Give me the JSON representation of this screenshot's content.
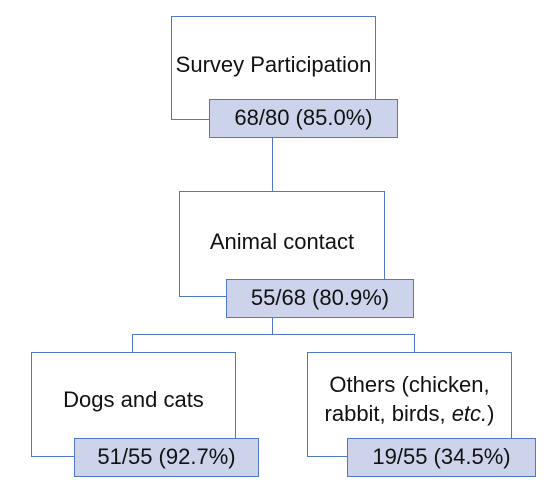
{
  "diagram": {
    "nodes": {
      "survey": {
        "label": "Survey Participation",
        "stat": "68/80 (85.0%)"
      },
      "animal": {
        "label": "Animal contact",
        "stat": "55/68 (80.9%)"
      },
      "dogs": {
        "label": "Dogs and cats",
        "stat": "51/55 (92.7%)"
      },
      "others": {
        "label_line1": "Others (chicken,",
        "label_line2_prefix": "rabbit, birds, ",
        "label_line2_italic": "etc.",
        "label_line2_suffix": ")",
        "stat": "19/55 (34.5%)"
      }
    },
    "colors": {
      "border": "#4f78c6",
      "stat_fill": "#ccd3eb",
      "background": "#ffffff"
    }
  }
}
